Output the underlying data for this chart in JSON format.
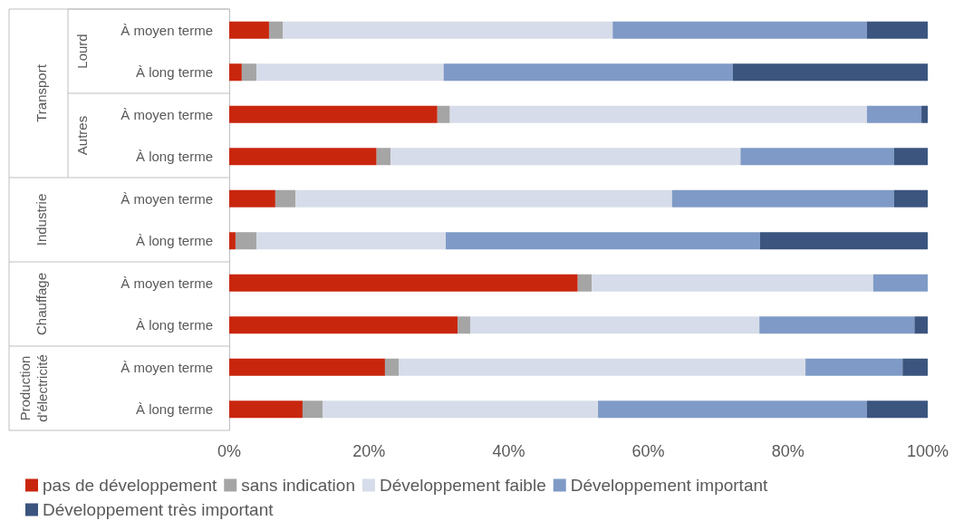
{
  "chart_data": {
    "type": "bar",
    "orientation": "horizontal",
    "stacked": true,
    "categories": [
      "À moyen terme",
      "À long terme",
      "À moyen terme",
      "À long terme",
      "À moyen terme",
      "À long terme",
      "À moyen terme",
      "À long terme",
      "À moyen terme",
      "À long terme"
    ],
    "series": [
      {
        "name": "pas de développement",
        "color": "#c9260e",
        "values": [
          5.7,
          1.8,
          29.8,
          21.1,
          6.6,
          0.9,
          49.9,
          32.7,
          22.3,
          10.5
        ]
      },
      {
        "name": "sans indication",
        "color": "#a5a5a5",
        "values": [
          2.0,
          2.1,
          1.8,
          2.0,
          2.9,
          3.0,
          2.0,
          1.8,
          2.0,
          2.9
        ]
      },
      {
        "name": "Développement faible",
        "color": "#d6dce9",
        "values": [
          47.2,
          26.8,
          59.7,
          50.1,
          53.9,
          27.1,
          40.3,
          41.4,
          58.2,
          39.4
        ]
      },
      {
        "name": "Développement important",
        "color": "#7f9ac6",
        "values": [
          36.4,
          41.4,
          7.8,
          22.0,
          31.8,
          45.0,
          7.8,
          22.2,
          13.9,
          38.5
        ]
      },
      {
        "name": "Développement très important",
        "color": "#3b557f",
        "values": [
          8.7,
          27.9,
          0.9,
          4.8,
          4.8,
          24.0,
          0.0,
          1.9,
          3.6,
          8.7
        ]
      }
    ],
    "xlim": [
      0,
      100
    ],
    "xticks": [
      {
        "value": 0,
        "label": "0%"
      },
      {
        "value": 20,
        "label": "20%"
      },
      {
        "value": 40,
        "label": "40%"
      },
      {
        "value": 60,
        "label": "60%"
      },
      {
        "value": 80,
        "label": "80%"
      },
      {
        "value": 100,
        "label": "100%"
      }
    ],
    "annotations": [
      "Transport",
      "Lourd",
      "Autres",
      "Industrie",
      "Chauffage",
      "Production d'électricité"
    ],
    "grid": false,
    "legend": "bottom"
  }
}
